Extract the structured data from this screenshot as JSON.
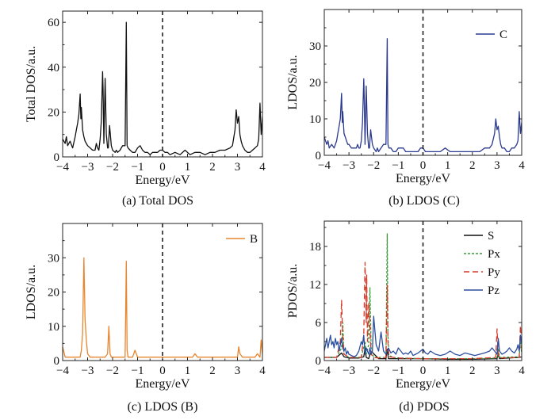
{
  "chart_data": [
    {
      "type": "line",
      "caption": "(a) Total DOS",
      "xlabel": "Energy/eV",
      "ylabel": "Total DOS/a.u.",
      "xlim": [
        -4,
        4
      ],
      "ylim": [
        0,
        65
      ],
      "xticks": [
        -4,
        -3,
        -2,
        -1,
        0,
        1,
        2,
        3,
        4
      ],
      "xtick_labels": [
        "−4",
        "−3",
        "−2",
        "−1",
        "0",
        "1",
        "2",
        "3",
        "4"
      ],
      "yticks": [
        0,
        20,
        40,
        60
      ],
      "ytick_labels": [
        "0",
        "20",
        "40",
        "60"
      ],
      "fermi_level": 0,
      "legend": [],
      "series": [
        {
          "color": "#111111",
          "x": [
            -4.0,
            -3.9,
            -3.85,
            -3.8,
            -3.7,
            -3.6,
            -3.5,
            -3.45,
            -3.4,
            -3.35,
            -3.3,
            -3.27,
            -3.25,
            -3.2,
            -3.15,
            -3.1,
            -3.05,
            -3.0,
            -2.9,
            -2.8,
            -2.7,
            -2.65,
            -2.6,
            -2.55,
            -2.5,
            -2.45,
            -2.4,
            -2.38,
            -2.35,
            -2.3,
            -2.25,
            -2.2,
            -2.17,
            -2.12,
            -2.05,
            -2.0,
            -1.9,
            -1.85,
            -1.8,
            -1.7,
            -1.6,
            -1.5,
            -1.45,
            -1.42,
            -1.38,
            -1.3,
            -1.2,
            -1.1,
            -1.0,
            -0.9,
            -0.8,
            -0.7,
            -0.6,
            -0.5,
            -0.4,
            -0.3,
            -0.2,
            -0.1,
            0.0,
            0.1,
            0.2,
            0.3,
            0.5,
            0.7,
            0.9,
            1.1,
            1.3,
            1.5,
            1.7,
            1.9,
            2.1,
            2.3,
            2.5,
            2.7,
            2.8,
            2.9,
            2.95,
            3.0,
            3.05,
            3.1,
            3.15,
            3.2,
            3.3,
            3.4,
            3.5,
            3.6,
            3.7,
            3.8,
            3.85,
            3.9,
            3.95,
            4.0
          ],
          "y": [
            8,
            6,
            9,
            5,
            7,
            4,
            9,
            12,
            15,
            19,
            28,
            17,
            22,
            12,
            9,
            7,
            6,
            5,
            4,
            3,
            3,
            6,
            4,
            3,
            8,
            16,
            38,
            30,
            6,
            35,
            10,
            4,
            4,
            14,
            5,
            3,
            2,
            3,
            2,
            3,
            5,
            5,
            60,
            5,
            4,
            3,
            2,
            2,
            4,
            5,
            3,
            2,
            2,
            1,
            2,
            2,
            2,
            3,
            3,
            2,
            2,
            1,
            2,
            1,
            3,
            1,
            2,
            2,
            1,
            2,
            2,
            3,
            3,
            4,
            5,
            12,
            21,
            15,
            18,
            10,
            7,
            5,
            3,
            2,
            2,
            3,
            4,
            5,
            8,
            24,
            10,
            18
          ]
        }
      ]
    },
    {
      "type": "line",
      "caption": "(b) LDOS (C)",
      "xlabel": "Energy/eV",
      "ylabel": "LDOS/a.u.",
      "xlim": [
        -4,
        4
      ],
      "ylim": [
        0,
        40
      ],
      "xticks": [
        -4,
        -3,
        -2,
        -1,
        0,
        1,
        2,
        3,
        4
      ],
      "xtick_labels": [
        "−4",
        "−3",
        "−2",
        "−1",
        "0",
        "1",
        "2",
        "3",
        "4"
      ],
      "yticks": [
        0,
        10,
        20,
        30
      ],
      "ytick_labels": [
        "0",
        "10",
        "20",
        "30"
      ],
      "fermi_level": 0,
      "legend": [
        "C"
      ],
      "series": [
        {
          "name": "C",
          "color": "#2b3a8f",
          "x": [
            -4.0,
            -3.9,
            -3.85,
            -3.8,
            -3.7,
            -3.6,
            -3.5,
            -3.45,
            -3.4,
            -3.35,
            -3.3,
            -3.27,
            -3.25,
            -3.2,
            -3.15,
            -3.1,
            -3.05,
            -3.0,
            -2.9,
            -2.8,
            -2.7,
            -2.65,
            -2.6,
            -2.55,
            -2.5,
            -2.45,
            -2.4,
            -2.38,
            -2.35,
            -2.3,
            -2.25,
            -2.2,
            -2.17,
            -2.12,
            -2.05,
            -2.0,
            -1.9,
            -1.85,
            -1.8,
            -1.7,
            -1.6,
            -1.5,
            -1.45,
            -1.42,
            -1.38,
            -1.3,
            -1.2,
            -1.1,
            -1.0,
            -0.9,
            -0.8,
            -0.7,
            -0.6,
            -0.5,
            -0.4,
            -0.3,
            -0.2,
            -0.1,
            0.0,
            0.1,
            0.2,
            0.3,
            0.5,
            0.7,
            0.9,
            1.1,
            1.3,
            1.5,
            1.7,
            1.9,
            2.1,
            2.3,
            2.5,
            2.7,
            2.8,
            2.9,
            2.95,
            3.0,
            3.05,
            3.1,
            3.15,
            3.2,
            3.3,
            3.4,
            3.5,
            3.6,
            3.7,
            3.8,
            3.85,
            3.9,
            3.95,
            4.0
          ],
          "y": [
            5,
            3,
            4,
            2,
            3,
            2,
            4,
            6,
            8,
            10,
            17,
            9,
            12,
            6,
            5,
            4,
            3,
            3,
            2,
            2,
            2,
            3,
            2,
            2,
            4,
            9,
            21,
            16,
            3,
            19,
            6,
            2,
            2,
            7,
            3,
            2,
            1,
            2,
            1,
            2,
            3,
            3,
            32,
            3,
            2,
            2,
            1,
            1,
            2,
            2,
            2,
            1,
            1,
            1,
            1,
            1,
            1,
            2,
            2,
            1,
            1,
            1,
            1,
            1,
            2,
            1,
            1,
            1,
            1,
            1,
            1,
            1,
            2,
            2,
            3,
            6,
            10,
            7,
            8,
            5,
            3,
            2,
            2,
            1,
            1,
            2,
            2,
            3,
            4,
            12,
            6,
            9
          ]
        }
      ]
    },
    {
      "type": "line",
      "caption": "(c) LDOS (B)",
      "xlabel": "Energy/eV",
      "ylabel": "LDOS/a.u.",
      "xlim": [
        -4,
        4
      ],
      "ylim": [
        0,
        40
      ],
      "xticks": [
        -4,
        -3,
        -2,
        -1,
        0,
        1,
        2,
        3,
        4
      ],
      "xtick_labels": [
        "−4",
        "−3",
        "−2",
        "−1",
        "0",
        "1",
        "2",
        "3",
        "4"
      ],
      "yticks": [
        0,
        10,
        20,
        30
      ],
      "ytick_labels": [
        "0",
        "10",
        "20",
        "30"
      ],
      "fermi_level": 0,
      "legend": [
        "B"
      ],
      "series": [
        {
          "name": "B",
          "color": "#e8852f",
          "x": [
            -4.0,
            -3.9,
            -3.8,
            -3.7,
            -3.6,
            -3.5,
            -3.4,
            -3.3,
            -3.25,
            -3.2,
            -3.15,
            -3.1,
            -3.05,
            -3.0,
            -2.9,
            -2.8,
            -2.7,
            -2.6,
            -2.5,
            -2.4,
            -2.3,
            -2.2,
            -2.15,
            -2.1,
            -2.05,
            -2.0,
            -1.9,
            -1.8,
            -1.7,
            -1.6,
            -1.5,
            -1.45,
            -1.42,
            -1.38,
            -1.3,
            -1.2,
            -1.1,
            -1.0,
            -0.9,
            -0.8,
            -0.6,
            -0.4,
            -0.2,
            0.0,
            0.2,
            0.4,
            0.6,
            0.8,
            1.0,
            1.2,
            1.3,
            1.4,
            1.6,
            1.8,
            2.0,
            2.2,
            2.4,
            2.6,
            2.8,
            2.9,
            3.0,
            3.05,
            3.1,
            3.2,
            3.3,
            3.5,
            3.7,
            3.8,
            3.9,
            3.95,
            4.0
          ],
          "y": [
            4,
            1,
            1,
            1,
            1,
            1,
            1,
            1,
            3,
            8,
            30,
            12,
            6,
            2,
            1,
            1,
            1,
            1,
            1,
            1,
            1,
            2,
            10,
            2,
            1,
            1,
            1,
            1,
            1,
            1,
            1,
            29,
            3,
            1,
            1,
            1,
            3,
            1,
            1,
            1,
            1,
            1,
            1,
            1,
            1,
            1,
            1,
            1,
            1,
            1,
            2,
            1,
            1,
            1,
            1,
            1,
            1,
            1,
            1,
            1,
            1,
            4,
            2,
            1,
            1,
            1,
            1,
            2,
            1,
            6,
            2
          ]
        }
      ]
    },
    {
      "type": "line",
      "caption": "(d) PDOS",
      "xlabel": "Energy/eV",
      "ylabel": "PDOS/a.u.",
      "xlim": [
        -4,
        4
      ],
      "ylim": [
        0,
        22
      ],
      "xticks": [
        -4,
        -3,
        -2,
        -1,
        0,
        1,
        2,
        3,
        4
      ],
      "xtick_labels": [
        "−4",
        "−3",
        "−2",
        "−1",
        "0",
        "1",
        "2",
        "3",
        "4"
      ],
      "yticks": [
        0,
        6,
        12,
        18
      ],
      "ytick_labels": [
        "0",
        "6",
        "12",
        "18"
      ],
      "fermi_level": 0,
      "legend": [
        "S",
        "Px",
        "Py",
        "Pz"
      ],
      "series": [
        {
          "name": "S",
          "color": "#111111",
          "dash": "",
          "x": [
            -4.0,
            -3.5,
            -3.3,
            -3.2,
            -3.0,
            -2.6,
            -2.4,
            -2.35,
            -2.3,
            -2.2,
            -2.1,
            -1.8,
            -1.5,
            -1.45,
            -1.4,
            -1.0,
            0.0,
            1.0,
            2.0,
            3.0,
            3.05,
            3.1,
            3.9,
            4.0
          ],
          "y": [
            0.5,
            0.5,
            1.2,
            0.6,
            0.4,
            0.4,
            0.6,
            2.0,
            0.5,
            0.3,
            1.5,
            0.3,
            0.3,
            1.8,
            0.3,
            0.3,
            0.3,
            0.2,
            0.2,
            0.3,
            1.0,
            0.3,
            0.5,
            0.6
          ]
        },
        {
          "name": "Px",
          "color": "#3a9a3a",
          "dash": "3 2",
          "x": [
            -4.0,
            -3.5,
            -3.3,
            -3.25,
            -3.2,
            -3.0,
            -2.5,
            -2.35,
            -2.3,
            -2.2,
            -2.15,
            -2.1,
            -2.0,
            -1.8,
            -1.5,
            -1.45,
            -1.42,
            -1.38,
            -1.2,
            -1.0,
            0.0,
            2.0,
            3.0,
            3.05,
            3.1,
            3.9,
            3.95,
            4.0
          ],
          "y": [
            0.5,
            0.5,
            2.0,
            6.0,
            1.0,
            0.5,
            0.5,
            3.0,
            1.0,
            2.5,
            11.5,
            2.0,
            0.5,
            0.5,
            0.5,
            20.0,
            4.0,
            0.8,
            0.5,
            0.4,
            0.3,
            0.3,
            0.4,
            2.0,
            0.5,
            0.6,
            3.0,
            1.0
          ]
        },
        {
          "name": "Py",
          "color": "#d83a2a",
          "dash": "7 4",
          "x": [
            -4.0,
            -3.5,
            -3.35,
            -3.3,
            -3.25,
            -3.2,
            -3.0,
            -2.5,
            -2.4,
            -2.35,
            -2.3,
            -2.28,
            -2.25,
            -2.2,
            -2.15,
            -2.1,
            -2.0,
            -1.8,
            -1.5,
            -1.45,
            -1.42,
            -1.38,
            -1.2,
            -1.0,
            0.0,
            2.0,
            2.95,
            3.0,
            3.05,
            3.1,
            3.9,
            3.95,
            4.0
          ],
          "y": [
            0.5,
            0.5,
            3.0,
            9.5,
            4.0,
            1.0,
            0.5,
            0.5,
            4.0,
            15.5,
            6.0,
            13.5,
            3.0,
            9.0,
            5.0,
            1.0,
            0.5,
            0.4,
            0.5,
            12.0,
            3.0,
            0.6,
            0.5,
            0.4,
            0.3,
            0.3,
            0.5,
            5.0,
            1.0,
            0.4,
            0.5,
            5.5,
            1.5
          ]
        },
        {
          "name": "Pz",
          "color": "#2b4ea0",
          "dash": "",
          "x": [
            -4.0,
            -3.95,
            -3.9,
            -3.85,
            -3.8,
            -3.75,
            -3.7,
            -3.65,
            -3.6,
            -3.55,
            -3.5,
            -3.45,
            -3.4,
            -3.35,
            -3.3,
            -3.25,
            -3.2,
            -3.15,
            -3.1,
            -3.05,
            -3.0,
            -2.9,
            -2.8,
            -2.7,
            -2.6,
            -2.5,
            -2.45,
            -2.4,
            -2.35,
            -2.3,
            -2.25,
            -2.2,
            -2.15,
            -2.1,
            -2.05,
            -2.0,
            -1.9,
            -1.8,
            -1.7,
            -1.6,
            -1.5,
            -1.4,
            -1.3,
            -1.2,
            -1.1,
            -1.0,
            -0.9,
            -0.8,
            -0.7,
            -0.6,
            -0.5,
            -0.4,
            -0.3,
            -0.2,
            -0.1,
            0.0,
            0.1,
            0.2,
            0.3,
            0.5,
            0.7,
            0.9,
            1.1,
            1.3,
            1.5,
            1.7,
            1.9,
            2.1,
            2.3,
            2.5,
            2.7,
            2.8,
            2.9,
            3.0,
            3.05,
            3.1,
            3.2,
            3.3,
            3.4,
            3.5,
            3.6,
            3.7,
            3.8,
            3.85,
            3.9,
            3.95,
            4.0
          ],
          "y": [
            1.5,
            2.5,
            3.5,
            2.0,
            3.0,
            4.0,
            2.5,
            3.0,
            2.0,
            3.5,
            2.5,
            3.0,
            1.5,
            2.5,
            3.5,
            2.0,
            1.5,
            2.0,
            1.0,
            1.5,
            1.0,
            0.8,
            0.6,
            0.8,
            1.5,
            3.0,
            2.5,
            4.0,
            1.0,
            2.0,
            1.5,
            1.0,
            2.0,
            1.0,
            1.5,
            7.0,
            2.5,
            1.5,
            4.5,
            1.5,
            1.0,
            2.0,
            1.2,
            1.5,
            1.0,
            2.0,
            1.5,
            1.0,
            1.2,
            1.0,
            1.5,
            0.8,
            1.0,
            1.2,
            1.5,
            1.8,
            1.2,
            1.0,
            1.5,
            1.0,
            0.8,
            1.0,
            1.5,
            1.0,
            0.8,
            1.2,
            1.0,
            0.8,
            1.0,
            1.2,
            1.5,
            2.0,
            1.5,
            1.0,
            3.5,
            1.5,
            1.0,
            1.2,
            1.5,
            2.0,
            1.5,
            1.2,
            1.8,
            2.5,
            1.5,
            4.0,
            2.5
          ]
        }
      ]
    }
  ]
}
